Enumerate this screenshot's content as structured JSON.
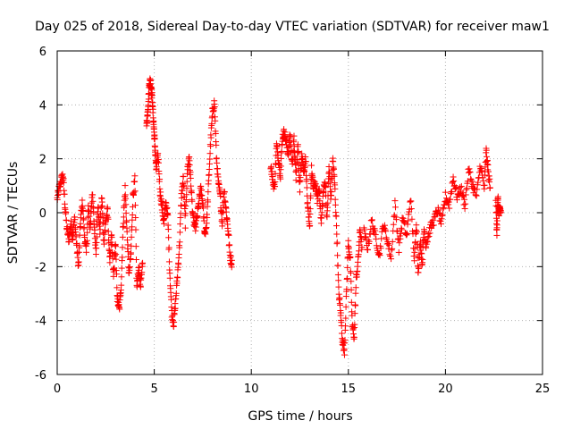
{
  "chart_data": {
    "type": "scatter",
    "title": "Day 025 of 2018, Sidereal Day-to-day VTEC variation (SDTVAR) for receiver maw1",
    "xlabel": "GPS time / hours",
    "ylabel": "SDTVAR / TECUs",
    "xlim": [
      0,
      25
    ],
    "ylim": [
      -6,
      6
    ],
    "xticks": [
      0,
      5,
      10,
      15,
      20,
      25
    ],
    "yticks": [
      -6,
      -4,
      -2,
      0,
      2,
      4,
      6
    ],
    "xtick_labels": [
      "0",
      "5",
      "10",
      "15",
      "20",
      "25"
    ],
    "ytick_labels": [
      "-6",
      "-4",
      "-2",
      "0",
      "2",
      "4",
      "6"
    ],
    "grid": true,
    "marker": "+",
    "color": "#ff0000",
    "series": [
      {
        "name": "maw1",
        "segments": [
          [
            [
              0.0,
              0.5
            ],
            [
              0.1,
              0.9
            ],
            [
              0.2,
              1.2
            ],
            [
              0.3,
              1.4
            ],
            [
              0.4,
              0.3
            ],
            [
              0.5,
              -0.6
            ],
            [
              0.6,
              -1.0
            ],
            [
              0.7,
              -0.4
            ],
            [
              0.8,
              -0.9
            ],
            [
              0.9,
              -0.2
            ],
            [
              1.0,
              -1.2
            ],
            [
              1.1,
              -2.0
            ],
            [
              1.2,
              -0.3
            ],
            [
              1.3,
              0.4
            ],
            [
              1.4,
              -0.8
            ],
            [
              1.5,
              -1.5
            ],
            [
              1.6,
              0.2
            ],
            [
              1.7,
              -0.6
            ],
            [
              1.8,
              0.8
            ],
            [
              1.9,
              -0.4
            ],
            [
              2.0,
              -1.4
            ],
            [
              2.1,
              0.3
            ],
            [
              2.2,
              -0.7
            ],
            [
              2.3,
              0.6
            ],
            [
              2.4,
              -1.1
            ],
            [
              2.5,
              -0.3
            ],
            [
              2.6,
              0.1
            ],
            [
              2.7,
              -1.8
            ],
            [
              2.8,
              -0.9
            ],
            [
              2.9,
              -2.4
            ],
            [
              3.0,
              -1.1
            ],
            [
              3.1,
              -3.2
            ],
            [
              3.2,
              -3.6
            ],
            [
              3.3,
              -2.6
            ],
            [
              3.4,
              -0.4
            ],
            [
              3.5,
              0.9
            ],
            [
              3.6,
              -0.8
            ],
            [
              3.7,
              -2.3
            ],
            [
              3.8,
              -1.5
            ],
            [
              3.9,
              0.6
            ],
            [
              4.0,
              1.2
            ],
            [
              4.1,
              -2.8
            ],
            [
              4.2,
              -2.0
            ],
            [
              4.3,
              -2.8
            ],
            [
              4.4,
              -1.7
            ]
          ],
          [
            [
              4.6,
              3.2
            ],
            [
              4.65,
              3.6
            ],
            [
              4.7,
              4.2
            ],
            [
              4.75,
              4.8
            ],
            [
              4.8,
              4.9
            ],
            [
              4.85,
              4.6
            ],
            [
              4.9,
              4.2
            ],
            [
              4.95,
              3.5
            ],
            [
              5.0,
              2.9
            ],
            [
              5.05,
              2.3
            ],
            [
              5.1,
              1.6
            ],
            [
              5.2,
              2.1
            ],
            [
              5.3,
              0.8
            ],
            [
              5.4,
              0.2
            ],
            [
              5.5,
              -0.4
            ],
            [
              5.6,
              0.4
            ],
            [
              5.7,
              -0.2
            ],
            [
              5.8,
              -2.2
            ],
            [
              5.9,
              -3.7
            ],
            [
              6.0,
              -4.1
            ],
            [
              6.1,
              -3.3
            ],
            [
              6.2,
              -2.3
            ],
            [
              6.3,
              -1.2
            ],
            [
              6.4,
              0.6
            ],
            [
              6.5,
              1.3
            ],
            [
              6.6,
              -0.4
            ],
            [
              6.7,
              1.5
            ],
            [
              6.8,
              2.1
            ],
            [
              6.9,
              0.9
            ],
            [
              7.0,
              -0.2
            ],
            [
              7.1,
              -0.6
            ],
            [
              7.2,
              -0.2
            ],
            [
              7.3,
              0.4
            ],
            [
              7.4,
              0.9
            ],
            [
              7.5,
              0.3
            ],
            [
              7.6,
              -0.8
            ],
            [
              7.7,
              -0.4
            ],
            [
              7.8,
              1.1
            ],
            [
              7.9,
              2.6
            ],
            [
              8.0,
              3.7
            ],
            [
              8.1,
              4.1
            ],
            [
              8.2,
              2.1
            ],
            [
              8.3,
              1.1
            ],
            [
              8.4,
              0.6
            ],
            [
              8.5,
              -0.4
            ],
            [
              8.6,
              0.9
            ],
            [
              8.7,
              0.1
            ],
            [
              8.8,
              -0.6
            ],
            [
              8.9,
              -1.6
            ],
            [
              9.0,
              -1.9
            ]
          ],
          [
            [
              11.0,
              1.8
            ],
            [
              11.1,
              1.2
            ],
            [
              11.2,
              0.9
            ],
            [
              11.3,
              2.5
            ],
            [
              11.4,
              2.0
            ],
            [
              11.5,
              1.4
            ],
            [
              11.6,
              2.8
            ],
            [
              11.7,
              3.0
            ],
            [
              11.8,
              2.6
            ],
            [
              11.9,
              2.2
            ],
            [
              12.0,
              2.9
            ],
            [
              12.1,
              1.8
            ],
            [
              12.2,
              2.7
            ],
            [
              12.3,
              1.3
            ],
            [
              12.4,
              2.5
            ],
            [
              12.5,
              0.9
            ],
            [
              12.6,
              2.3
            ],
            [
              12.7,
              1.5
            ],
            [
              12.8,
              2.0
            ],
            [
              12.9,
              0.2
            ],
            [
              13.0,
              -0.6
            ],
            [
              13.1,
              1.6
            ],
            [
              13.2,
              0.9
            ],
            [
              13.3,
              1.1
            ],
            [
              13.4,
              0.5
            ],
            [
              13.5,
              0.9
            ],
            [
              13.6,
              -0.4
            ],
            [
              13.7,
              0.7
            ],
            [
              13.8,
              1.2
            ],
            [
              13.9,
              -0.3
            ],
            [
              14.0,
              1.7
            ],
            [
              14.1,
              0.5
            ],
            [
              14.2,
              2.0
            ],
            [
              14.3,
              1.0
            ],
            [
              14.4,
              -0.7
            ],
            [
              14.5,
              -2.9
            ],
            [
              14.6,
              -3.7
            ],
            [
              14.7,
              -4.8
            ],
            [
              14.8,
              -5.1
            ],
            [
              14.9,
              -3.0
            ],
            [
              15.0,
              -1.1
            ],
            [
              15.1,
              -1.8
            ],
            [
              15.2,
              -4.2
            ],
            [
              15.3,
              -4.6
            ],
            [
              15.4,
              -2.5
            ],
            [
              15.5,
              -1.8
            ],
            [
              15.6,
              -0.6
            ],
            [
              15.7,
              -1.3
            ]
          ],
          [
            [
              15.8,
              -0.7
            ],
            [
              16.0,
              -1.3
            ],
            [
              16.2,
              -0.3
            ],
            [
              16.4,
              -0.9
            ],
            [
              16.6,
              -1.6
            ],
            [
              16.8,
              -0.4
            ],
            [
              17.0,
              -1.0
            ],
            [
              17.2,
              -1.7
            ],
            [
              17.4,
              0.3
            ],
            [
              17.6,
              -1.3
            ],
            [
              17.8,
              -0.2
            ],
            [
              18.0,
              -0.9
            ],
            [
              18.2,
              0.6
            ],
            [
              18.4,
              -1.8
            ],
            [
              18.5,
              -0.3
            ],
            [
              18.6,
              -2.3
            ],
            [
              18.7,
              -1.0
            ],
            [
              18.8,
              -1.9
            ],
            [
              18.9,
              -0.6
            ],
            [
              19.0,
              -1.2
            ],
            [
              19.2,
              -0.6
            ],
            [
              19.4,
              -0.3
            ],
            [
              19.6,
              0.1
            ],
            [
              19.8,
              -0.4
            ],
            [
              20.0,
              0.6
            ],
            [
              20.2,
              0.3
            ],
            [
              20.4,
              1.3
            ],
            [
              20.6,
              0.6
            ],
            [
              20.8,
              0.9
            ],
            [
              21.0,
              0.3
            ],
            [
              21.2,
              1.6
            ],
            [
              21.4,
              1.0
            ],
            [
              21.6,
              0.6
            ],
            [
              21.8,
              1.8
            ],
            [
              22.0,
              0.9
            ],
            [
              22.1,
              2.3
            ],
            [
              22.2,
              1.5
            ],
            [
              22.3,
              1.0
            ]
          ],
          [
            [
              22.6,
              0.3
            ],
            [
              22.65,
              -0.7
            ],
            [
              22.7,
              0.6
            ],
            [
              22.75,
              -0.1
            ],
            [
              22.8,
              0.2
            ],
            [
              22.85,
              0.0
            ]
          ]
        ]
      }
    ]
  }
}
